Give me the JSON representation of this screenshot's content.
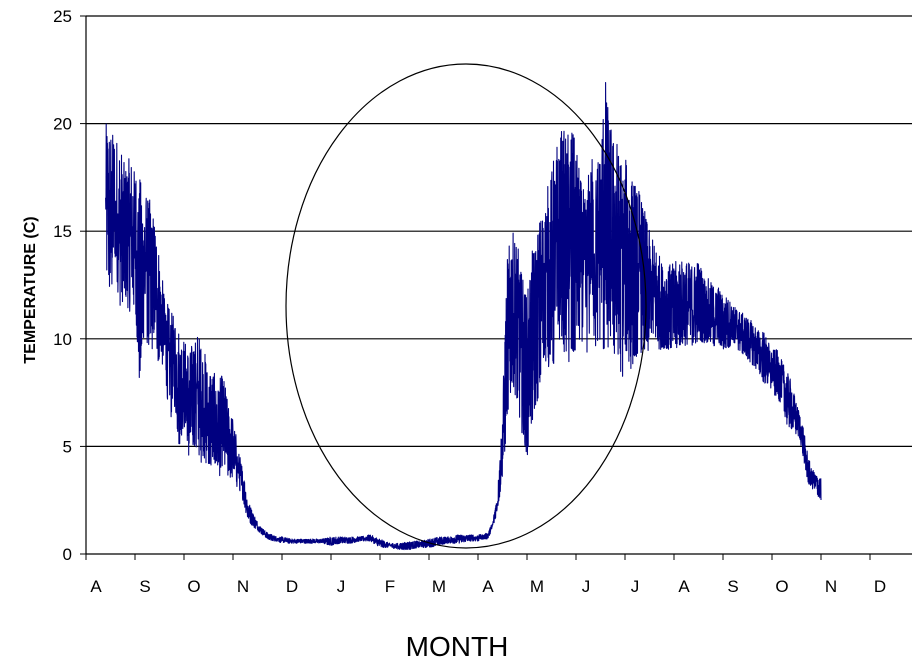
{
  "chart_data": {
    "type": "line",
    "title": "",
    "xlabel": "MONTH",
    "ylabel": "TEMPERATURE (C)",
    "ylim": [
      0,
      25
    ],
    "yticks": [
      0,
      5,
      10,
      15,
      20,
      25
    ],
    "grid": "horizontal",
    "legend": "none",
    "x_tick_labels": [
      "A",
      "S",
      "O",
      "N",
      "D",
      "J",
      "F",
      "M",
      "A",
      "M",
      "J",
      "J",
      "A",
      "S",
      "O",
      "N",
      "D"
    ],
    "x_unit": "month index (0 = start of first August shown)",
    "xlim": [
      0,
      16.5
    ],
    "series": [
      {
        "color": "#000080",
        "x": [
          0.4,
          0.5,
          0.6,
          0.7,
          0.8,
          0.9,
          1.0,
          1.1,
          1.2,
          1.3,
          1.4,
          1.5,
          1.6,
          1.7,
          1.8,
          1.9,
          2.0,
          2.1,
          2.2,
          2.3,
          2.4,
          2.5,
          2.6,
          2.7,
          2.8,
          2.9,
          3.0,
          3.1,
          3.2,
          3.3,
          3.4,
          3.5,
          3.6,
          3.7,
          3.8,
          3.9,
          4.0,
          4.2,
          4.4,
          4.6,
          4.8,
          5.0,
          5.2,
          5.4,
          5.6,
          5.8,
          6.0,
          6.2,
          6.4,
          6.6,
          6.8,
          7.0,
          7.2,
          7.4,
          7.6,
          7.8,
          8.0,
          8.1,
          8.2,
          8.3,
          8.4,
          8.5,
          8.6,
          8.7,
          8.8,
          8.9,
          9.0,
          9.1,
          9.2,
          9.3,
          9.4,
          9.5,
          9.6,
          9.7,
          9.8,
          9.9,
          10.0,
          10.1,
          10.2,
          10.3,
          10.4,
          10.5,
          10.6,
          10.7,
          10.8,
          10.9,
          11.0,
          11.1,
          11.2,
          11.3,
          11.4,
          11.5,
          11.6,
          11.7,
          11.8,
          11.9,
          12.0,
          12.1,
          12.2,
          12.3,
          12.4,
          12.5,
          12.6,
          12.7,
          12.8,
          12.9,
          13.0,
          13.1,
          13.2,
          13.3,
          13.4,
          13.5,
          13.6,
          13.7,
          13.8,
          13.9,
          14.0,
          14.1,
          14.2,
          14.3,
          14.4,
          14.5,
          14.6,
          14.7,
          14.8,
          14.9,
          15.0
        ],
        "low": [
          13.0,
          12.0,
          12.5,
          11.5,
          12.0,
          11.0,
          11.5,
          7.5,
          10.5,
          9.0,
          10.0,
          8.5,
          9.0,
          6.0,
          7.0,
          5.0,
          6.0,
          4.3,
          5.0,
          4.0,
          4.5,
          3.8,
          4.2,
          3.5,
          4.0,
          3.5,
          3.5,
          3.0,
          2.5,
          1.6,
          1.3,
          1.1,
          0.9,
          0.7,
          0.6,
          0.6,
          0.5,
          0.5,
          0.5,
          0.5,
          0.5,
          0.4,
          0.5,
          0.5,
          0.6,
          0.6,
          0.3,
          0.3,
          0.2,
          0.2,
          0.3,
          0.3,
          0.4,
          0.5,
          0.5,
          0.6,
          0.6,
          0.7,
          0.7,
          1.2,
          2.0,
          3.5,
          6.0,
          8.0,
          7.0,
          5.5,
          4.5,
          6.0,
          7.0,
          8.0,
          9.0,
          8.0,
          9.5,
          10.0,
          9.0,
          8.5,
          9.5,
          10.0,
          9.0,
          10.5,
          9.5,
          10.0,
          9.0,
          10.0,
          9.0,
          8.5,
          8.0,
          8.5,
          9.0,
          9.5,
          9.0,
          9.5,
          10.0,
          9.5,
          9.5,
          9.5,
          9.5,
          9.5,
          9.5,
          9.5,
          9.5,
          10.0,
          9.8,
          9.8,
          9.6,
          9.7,
          9.5,
          9.5,
          9.8,
          9.5,
          9.3,
          9.0,
          8.8,
          8.5,
          8.0,
          7.8,
          7.5,
          7.2,
          7.0,
          6.0,
          5.8,
          5.5,
          5.0,
          3.5,
          3.0,
          2.8,
          2.5
        ],
        "high": [
          20.0,
          20.0,
          19.5,
          19.0,
          18.0,
          18.5,
          18.0,
          17.5,
          17.0,
          16.5,
          15.5,
          14.0,
          12.0,
          11.5,
          11.0,
          10.5,
          10.0,
          9.5,
          10.0,
          10.5,
          9.5,
          9.0,
          8.5,
          8.0,
          8.5,
          7.0,
          6.5,
          5.0,
          4.0,
          2.5,
          2.0,
          1.5,
          1.2,
          1.0,
          0.9,
          0.8,
          0.8,
          0.7,
          0.7,
          0.7,
          0.7,
          0.8,
          0.8,
          0.8,
          0.8,
          0.9,
          0.7,
          0.5,
          0.5,
          0.6,
          0.6,
          0.7,
          0.8,
          0.8,
          0.9,
          0.9,
          0.9,
          0.9,
          1.0,
          1.5,
          3.0,
          7.0,
          14.0,
          15.0,
          14.5,
          13.0,
          12.0,
          14.0,
          15.0,
          16.0,
          17.0,
          18.0,
          19.0,
          20.0,
          19.5,
          20.0,
          19.0,
          17.5,
          16.5,
          19.0,
          18.0,
          19.5,
          22.2,
          20.0,
          19.5,
          19.0,
          18.5,
          18.0,
          17.5,
          17.0,
          16.0,
          15.0,
          14.5,
          14.0,
          13.5,
          13.5,
          13.5,
          13.8,
          13.7,
          13.6,
          13.5,
          13.8,
          13.0,
          12.8,
          12.5,
          12.5,
          12.0,
          12.0,
          11.5,
          11.5,
          11.2,
          11.0,
          10.8,
          10.5,
          10.5,
          10.0,
          9.5,
          9.5,
          9.0,
          8.5,
          8.0,
          7.0,
          6.5,
          5.0,
          4.0,
          3.8,
          3.5
        ]
      }
    ],
    "annotation": "ellipse"
  }
}
